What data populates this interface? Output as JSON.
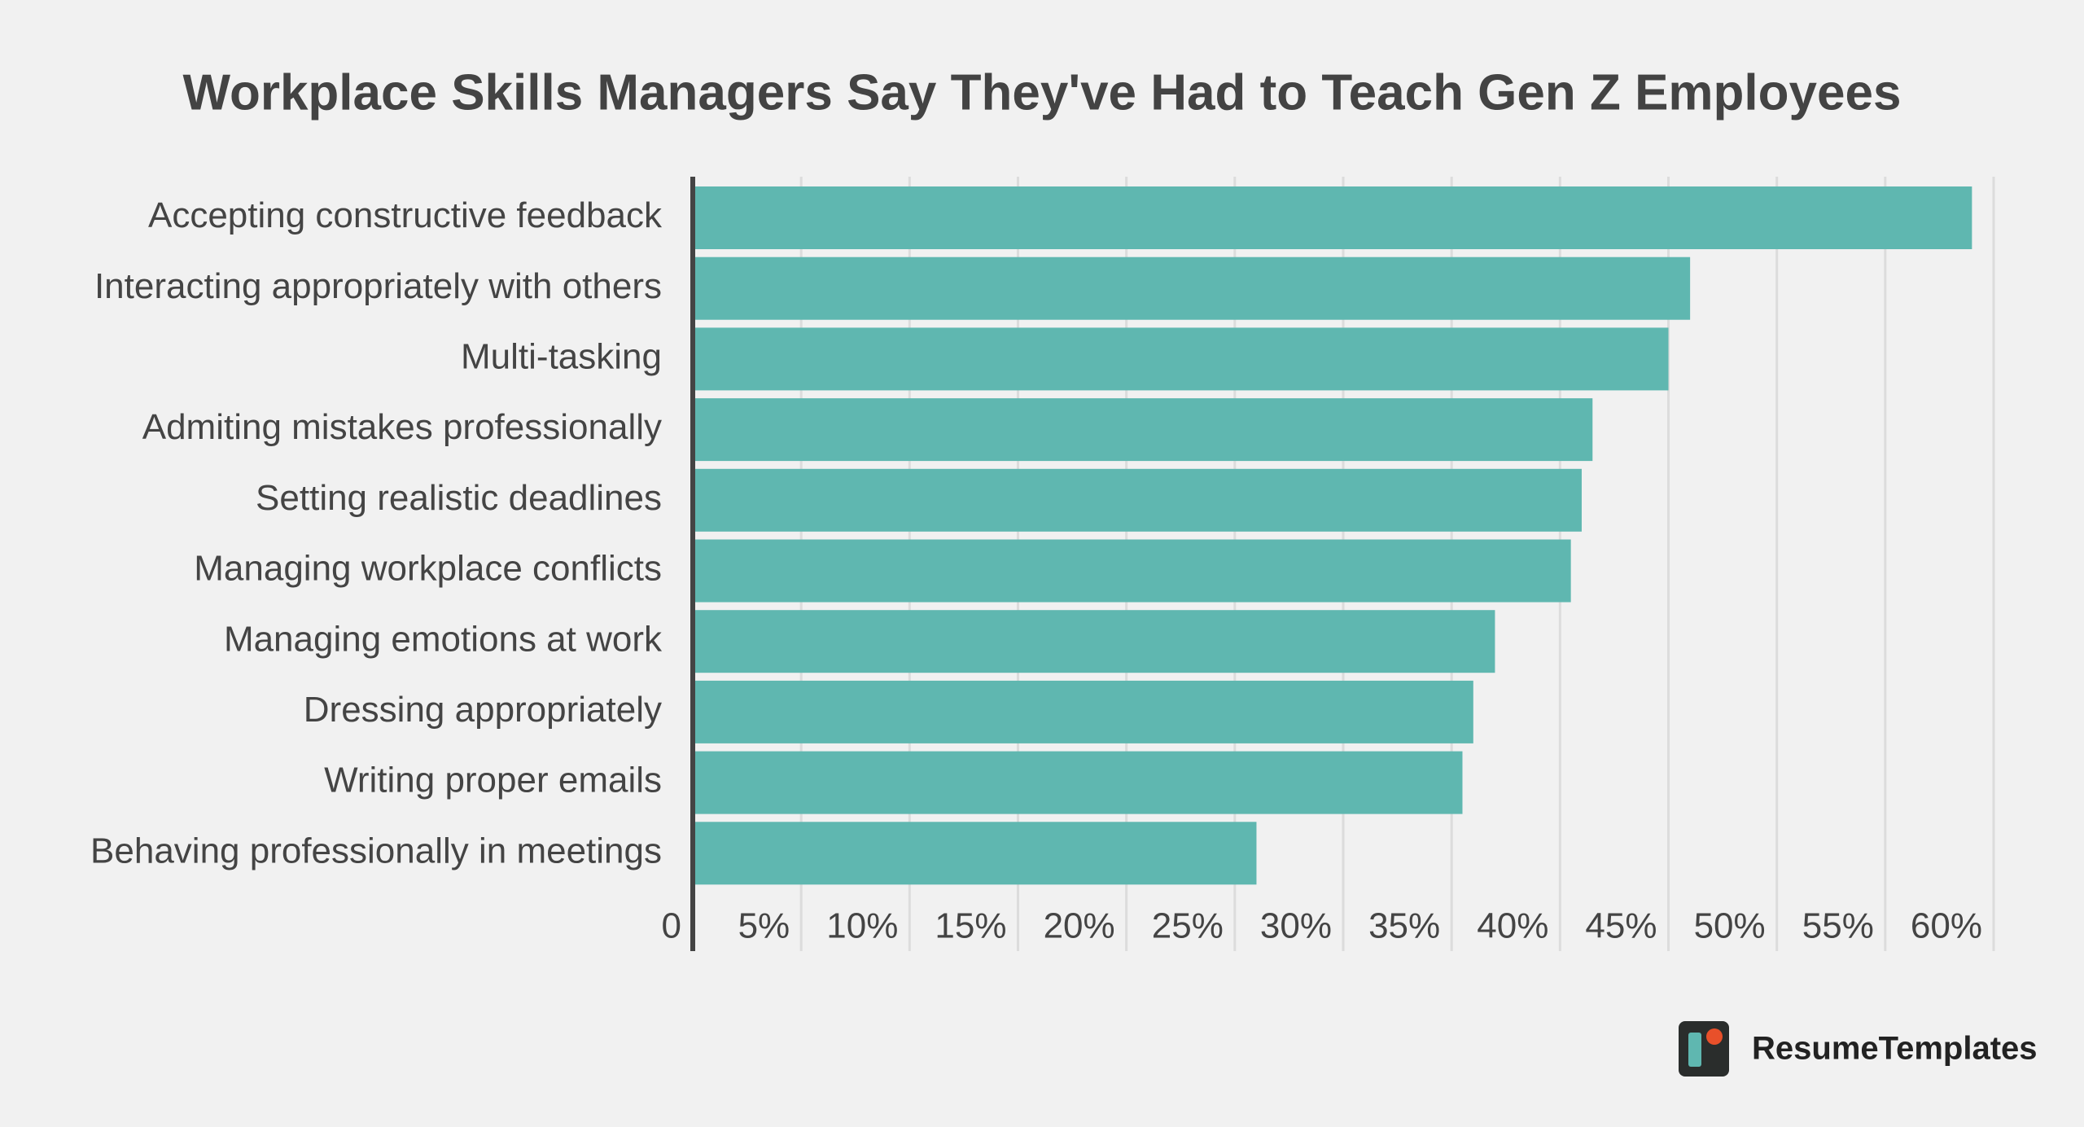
{
  "chart_data": {
    "type": "bar",
    "orientation": "horizontal",
    "title": "Workplace Skills Managers Say They've Had to Teach Gen Z Employees",
    "categories": [
      "Accepting constructive feedback",
      "Interacting appropriately with others",
      "Multi-tasking",
      "Admiting mistakes professionally",
      "Setting realistic deadlines",
      "Managing workplace conflicts",
      "Managing emotions at work",
      "Dressing appropriately",
      "Writing proper emails",
      "Behaving professionally in meetings"
    ],
    "values": [
      59,
      46,
      45,
      41.5,
      41,
      40.5,
      37,
      36,
      35.5,
      26
    ],
    "color": "#5fb7b0",
    "xlim": [
      0,
      60
    ],
    "xticks": [
      0,
      {
        "value": 5,
        "label": "5%"
      },
      {
        "value": 10,
        "label": "10%"
      },
      {
        "value": 15,
        "label": "15%"
      },
      {
        "value": 20,
        "label": "20%"
      },
      {
        "value": 25,
        "label": "25%"
      },
      {
        "value": 30,
        "label": "30%"
      },
      {
        "value": 35,
        "label": "35%"
      },
      {
        "value": 40,
        "label": "40%"
      },
      {
        "value": 45,
        "label": "45%"
      },
      {
        "value": 50,
        "label": "50%"
      },
      {
        "value": 55,
        "label": "55%"
      },
      {
        "value": 60,
        "label": "60%"
      }
    ],
    "grid": true
  },
  "brand": "ResumeTemplates"
}
